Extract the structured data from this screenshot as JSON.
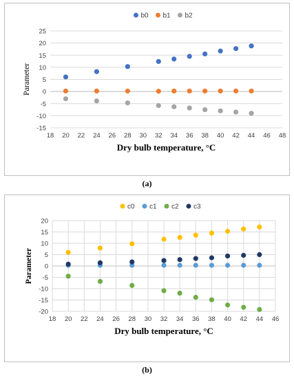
{
  "chart_data": [
    {
      "type": "scatter",
      "title": "",
      "xlabel": "Dry bulb temperature, °C",
      "ylabel": "Parameter",
      "xlim": [
        18,
        48
      ],
      "ylim": [
        -15,
        25
      ],
      "xticks": [
        18,
        20,
        22,
        24,
        26,
        28,
        30,
        32,
        34,
        36,
        38,
        40,
        42,
        44,
        46,
        48
      ],
      "yticks": [
        -15,
        -10,
        -5,
        0,
        5,
        10,
        15,
        20,
        25
      ],
      "grid": "horizontal",
      "legend_position": "top",
      "x": [
        20,
        24,
        28,
        32,
        34,
        36,
        38,
        40,
        42,
        44
      ],
      "series": [
        {
          "name": "b0",
          "color": "#4472c4",
          "values": [
            6.0,
            8.2,
            10.3,
            12.4,
            13.4,
            14.5,
            15.5,
            16.7,
            17.7,
            18.8
          ]
        },
        {
          "name": "b1",
          "color": "#ed7d31",
          "values": [
            0.2,
            0.2,
            0.2,
            0.1,
            0.2,
            0.2,
            0.2,
            0.2,
            0.2,
            0.2
          ]
        },
        {
          "name": "b2",
          "color": "#a5a5a5",
          "values": [
            -3.0,
            -3.9,
            -4.7,
            -5.8,
            -6.3,
            -6.8,
            -7.5,
            -8.0,
            -8.5,
            -9.0
          ]
        }
      ]
    },
    {
      "type": "scatter",
      "title": "",
      "xlabel": "Dry bulb temperature, °C",
      "ylabel": "Parameter",
      "xlim": [
        18,
        46
      ],
      "ylim": [
        -20,
        20
      ],
      "xticks": [
        18,
        20,
        22,
        24,
        26,
        28,
        30,
        32,
        34,
        36,
        38,
        40,
        42,
        44,
        46
      ],
      "yticks": [
        -20,
        -15,
        -10,
        -5,
        0,
        5,
        10,
        15,
        20
      ],
      "grid": "both",
      "legend_position": "top",
      "x": [
        20,
        24,
        28,
        32,
        34,
        36,
        38,
        40,
        42,
        44
      ],
      "series": [
        {
          "name": "c0",
          "color": "#ffc000",
          "values": [
            6.0,
            7.9,
            9.8,
            11.8,
            12.6,
            13.6,
            14.5,
            15.3,
            16.3,
            17.2
          ]
        },
        {
          "name": "c1",
          "color": "#5b9bd5",
          "values": [
            0.3,
            0.3,
            0.3,
            0.3,
            0.3,
            0.3,
            0.3,
            0.3,
            0.3,
            0.3
          ]
        },
        {
          "name": "c2",
          "color": "#70ad47",
          "values": [
            -4.5,
            -6.8,
            -8.6,
            -10.9,
            -12.0,
            -13.8,
            -14.9,
            -17.2,
            -18.2,
            -19.2
          ]
        },
        {
          "name": "c3",
          "color": "#203864",
          "values": [
            0.8,
            1.4,
            1.8,
            2.4,
            2.8,
            3.3,
            3.6,
            4.4,
            4.7,
            5.0
          ]
        }
      ]
    }
  ],
  "captions": [
    "(a)",
    "(b)"
  ]
}
